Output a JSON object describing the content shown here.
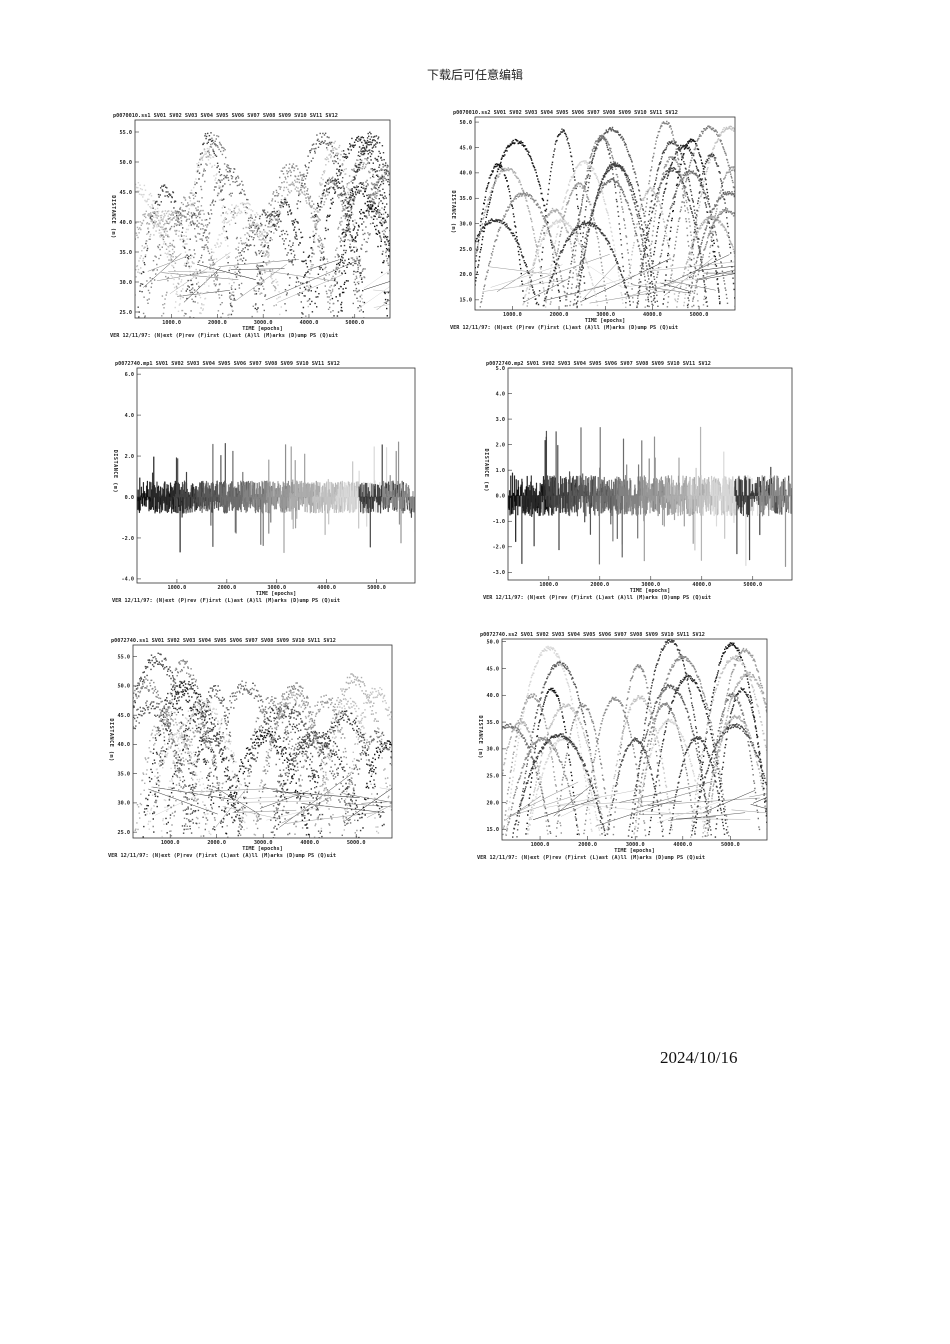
{
  "page": {
    "header": "下载后可任意编辑",
    "date": "2024/10/16"
  },
  "chart_data": [
    {
      "type": "scatter",
      "title": "p0070010.ss1",
      "series_names": [
        "SV01",
        "SV02",
        "SV03",
        "SV04",
        "SV05",
        "SV06",
        "SV07",
        "SV08",
        "SV09",
        "SV10",
        "SV11",
        "SV12"
      ],
      "xlabel": "TIME [epochs]",
      "ylabel": "DISTANCE (m)",
      "xlim": [
        200,
        5770
      ],
      "xticks": [
        "1000.0",
        "2000.0",
        "3000.0",
        "4000.0",
        "5000.0"
      ],
      "ylim": [
        24,
        57
      ],
      "yticks": [
        "25.0",
        "30.0",
        "35.0",
        "40.0",
        "45.0",
        "50.0",
        "55.0"
      ],
      "footer": "VER 12/11/97: (N)ext (P)rev (F)irst (L)ast (A)ll (M)arks (D)ump PS (Q)uit",
      "colors": "grayscale"
    },
    {
      "type": "scatter",
      "title": "p0070010.ss2",
      "series_names": [
        "SV01",
        "SV02",
        "SV03",
        "SV04",
        "SV05",
        "SV06",
        "SV07",
        "SV08",
        "SV09",
        "SV10",
        "SV11",
        "SV12"
      ],
      "xlabel": "TIME [epochs]",
      "ylabel": "DISTANCE (m)",
      "xlim": [
        200,
        5770
      ],
      "xticks": [
        "1000.0",
        "2000.0",
        "3000.0",
        "4000.0",
        "5000.0"
      ],
      "ylim": [
        13,
        51
      ],
      "yticks": [
        "15.0",
        "20.0",
        "25.0",
        "30.0",
        "35.0",
        "40.0",
        "45.0",
        "50.0"
      ],
      "footer": "VER 12/11/97: (N)ext (P)rev (F)irst (L)ast (A)ll (M)arks (D)ump PS (Q)uit",
      "colors": "grayscale"
    },
    {
      "type": "scatter",
      "title": "p0072740.mp1",
      "series_names": [
        "SV01",
        "SV02",
        "SV03",
        "SV04",
        "SV05",
        "SV06",
        "SV07",
        "SV08",
        "SV09",
        "SV10",
        "SV11",
        "SV12"
      ],
      "xlabel": "TIME [epochs]",
      "ylabel": "DISTANCE (m)",
      "xlim": [
        200,
        5770
      ],
      "xticks": [
        "1000.0",
        "2000.0",
        "3000.0",
        "4000.0",
        "5000.0"
      ],
      "ylim": [
        -4.2,
        6.3
      ],
      "yticks": [
        "-4.0",
        "-2.0",
        "0.0",
        "2.0",
        "4.0",
        "6.0"
      ],
      "footer": "VER 12/11/97: (N)ext (P)rev (F)irst (L)ast (A)ll (M)arks (D)ump PS (Q)uit",
      "colors": "grayscale"
    },
    {
      "type": "scatter",
      "title": "p0072740.mp2",
      "series_names": [
        "SV01",
        "SV02",
        "SV03",
        "SV04",
        "SV05",
        "SV06",
        "SV07",
        "SV08",
        "SV09",
        "SV10",
        "SV11",
        "SV12"
      ],
      "xlabel": "TIME [epochs]",
      "ylabel": "DISTANCE (m)",
      "xlim": [
        200,
        5770
      ],
      "xticks": [
        "1000.0",
        "2000.0",
        "3000.0",
        "4000.0",
        "5000.0"
      ],
      "ylim": [
        -3.3,
        5.0
      ],
      "yticks": [
        "-3.0",
        "-2.0",
        "-1.0",
        "0.0",
        "1.0",
        "2.0",
        "3.0",
        "4.0",
        "5.0"
      ],
      "footer": "VER 12/11/97: (N)ext (P)rev (F)irst (L)ast (A)ll (M)arks (D)ump PS (Q)uit",
      "colors": "grayscale"
    },
    {
      "type": "scatter",
      "title": "p0072740.ss1",
      "series_names": [
        "SV01",
        "SV02",
        "SV03",
        "SV04",
        "SV05",
        "SV06",
        "SV07",
        "SV08",
        "SV09",
        "SV10",
        "SV11",
        "SV12"
      ],
      "xlabel": "TIME [epochs]",
      "ylabel": "DISTANCE (m)",
      "xlim": [
        200,
        5770
      ],
      "xticks": [
        "1000.0",
        "2000.0",
        "3000.0",
        "4000.0",
        "5000.0"
      ],
      "ylim": [
        24,
        57
      ],
      "yticks": [
        "25.0",
        "30.0",
        "35.0",
        "40.0",
        "45.0",
        "50.0",
        "55.0"
      ],
      "footer": "VER 12/11/97: (N)ext (P)rev (F)irst (L)ast (A)ll (M)arks (D)ump PS (Q)uit",
      "colors": "grayscale"
    },
    {
      "type": "scatter",
      "title": "p0072740.ss2",
      "series_names": [
        "SV01",
        "SV02",
        "SV03",
        "SV04",
        "SV05",
        "SV06",
        "SV07",
        "SV08",
        "SV09",
        "SV10",
        "SV11",
        "SV12"
      ],
      "xlabel": "TIME [epochs]",
      "ylabel": "DISTANCE (m)",
      "xlim": [
        200,
        5770
      ],
      "xticks": [
        "1000.0",
        "2000.0",
        "3000.0",
        "4000.0",
        "5000.0"
      ],
      "ylim": [
        13,
        50.5
      ],
      "yticks": [
        "15.0",
        "20.0",
        "25.0",
        "30.0",
        "35.0",
        "40.0",
        "45.0",
        "50.0"
      ],
      "footer": "VER 12/11/97: (N)ext (P)rev (F)irst (L)ast (A)ll (M)arks (D)ump PS (Q)uit",
      "colors": "grayscale"
    }
  ]
}
